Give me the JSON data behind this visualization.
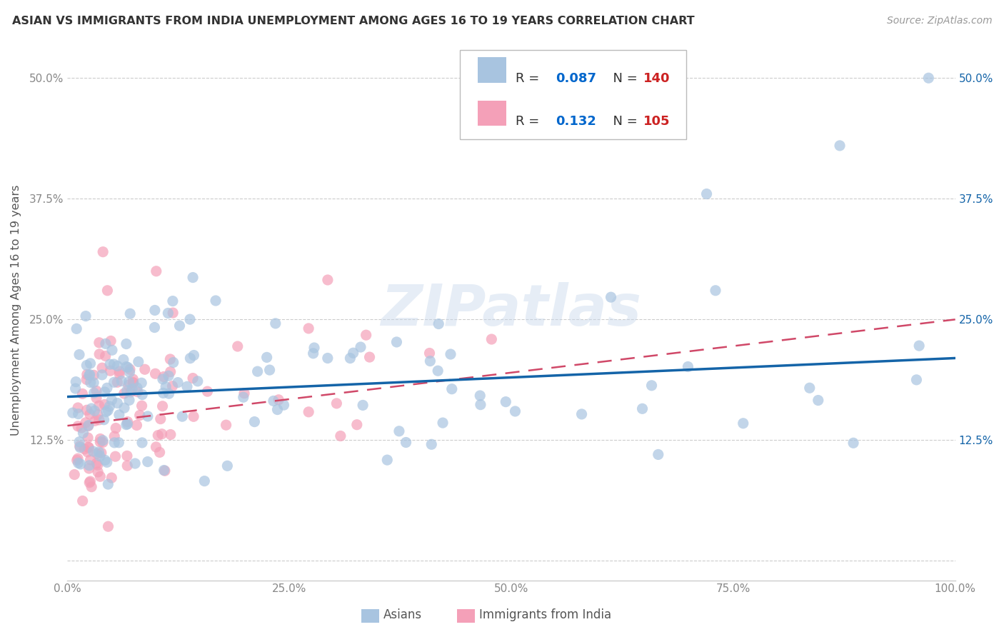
{
  "title": "ASIAN VS IMMIGRANTS FROM INDIA UNEMPLOYMENT AMONG AGES 16 TO 19 YEARS CORRELATION CHART",
  "source": "Source: ZipAtlas.com",
  "ylabel": "Unemployment Among Ages 16 to 19 years",
  "xlim": [
    0,
    100
  ],
  "ylim": [
    -2,
    54
  ],
  "yticks": [
    0,
    12.5,
    25.0,
    37.5,
    50.0
  ],
  "xticks": [
    0,
    25,
    50,
    75,
    100
  ],
  "xtick_labels": [
    "0.0%",
    "25.0%",
    "50.0%",
    "75.0%",
    "100.0%"
  ],
  "ytick_labels": [
    "",
    "12.5%",
    "25.0%",
    "37.5%",
    "50.0%"
  ],
  "right_ytick_labels": [
    "",
    "12.5%",
    "25.0%",
    "37.5%",
    "50.0%"
  ],
  "legend_labels": [
    "Asians",
    "Immigrants from India"
  ],
  "asian_R": "0.087",
  "asian_N": "140",
  "india_R": "0.132",
  "india_N": "105",
  "asian_color": "#a8c4e0",
  "india_color": "#f4a0b8",
  "asian_line_color": "#1464a8",
  "india_line_color": "#d04868",
  "watermark": "ZIPatlas",
  "background_color": "#ffffff",
  "grid_color": "#cccccc",
  "tick_color": "#888888",
  "right_tick_color": "#1464a8",
  "legend_R_color": "#0066cc",
  "legend_N_color": "#cc0000"
}
